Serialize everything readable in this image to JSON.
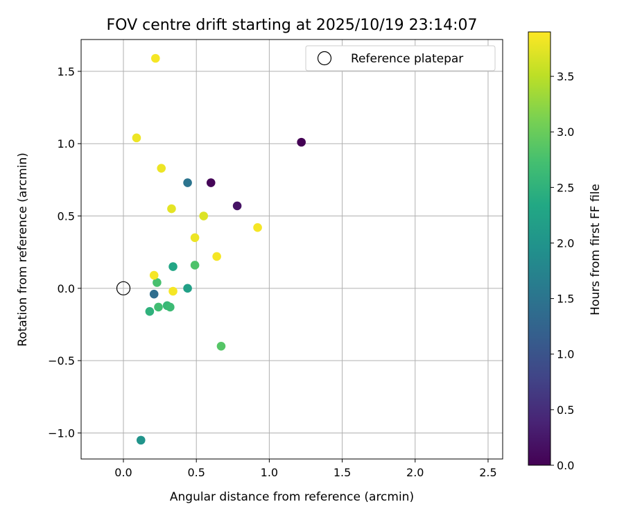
{
  "chart_data": {
    "type": "scatter",
    "title": "FOV centre drift starting at 2025/10/19 23:14:07",
    "xlabel": "Angular distance from reference (arcmin)",
    "ylabel": "Rotation from reference (arcmin)",
    "xlim": [
      -0.29,
      2.6
    ],
    "ylim": [
      -1.18,
      1.72
    ],
    "xticks": [
      0.0,
      0.5,
      1.0,
      1.5,
      2.0,
      2.5
    ],
    "xtick_labels": [
      "0.0",
      "0.5",
      "1.0",
      "1.5",
      "2.0",
      "2.5"
    ],
    "yticks": [
      -1.0,
      -0.5,
      0.0,
      0.5,
      1.0,
      1.5
    ],
    "ytick_labels": [
      "−1.0",
      "−0.5",
      "0.0",
      "0.5",
      "1.0",
      "1.5"
    ],
    "grid": true,
    "legend": {
      "position": "top-right",
      "label": "Reference platepar"
    },
    "reference": {
      "x": 0.0,
      "y": 0.0
    },
    "colorbar": {
      "label": "Hours from first FF file",
      "colormap": "viridis",
      "range": [
        0.0,
        3.9
      ],
      "ticks": [
        0.0,
        0.5,
        1.0,
        1.5,
        2.0,
        2.5,
        3.0,
        3.5
      ],
      "tick_labels": [
        "0.0",
        "0.5",
        "1.0",
        "1.5",
        "2.0",
        "2.5",
        "3.0",
        "3.5"
      ]
    },
    "points": [
      {
        "x": 1.22,
        "y": 1.01,
        "hours": 0.0
      },
      {
        "x": 0.6,
        "y": 0.73,
        "hours": 0.05
      },
      {
        "x": 0.78,
        "y": 0.57,
        "hours": 0.2
      },
      {
        "x": 0.44,
        "y": 0.73,
        "hours": 1.5
      },
      {
        "x": 0.21,
        "y": -0.04,
        "hours": 1.4
      },
      {
        "x": 0.12,
        "y": -1.05,
        "hours": 2.0
      },
      {
        "x": 0.44,
        "y": 0.0,
        "hours": 2.2
      },
      {
        "x": 0.34,
        "y": 0.15,
        "hours": 2.3
      },
      {
        "x": 0.18,
        "y": -0.16,
        "hours": 2.5
      },
      {
        "x": 0.3,
        "y": -0.12,
        "hours": 2.6
      },
      {
        "x": 0.32,
        "y": -0.13,
        "hours": 2.65
      },
      {
        "x": 0.24,
        "y": -0.13,
        "hours": 2.7
      },
      {
        "x": 0.23,
        "y": 0.04,
        "hours": 2.75
      },
      {
        "x": 0.49,
        "y": 0.16,
        "hours": 2.8
      },
      {
        "x": 0.67,
        "y": -0.4,
        "hours": 2.85
      },
      {
        "x": 0.21,
        "y": 0.09,
        "hours": 3.85
      },
      {
        "x": 0.34,
        "y": -0.02,
        "hours": 3.85
      },
      {
        "x": 0.49,
        "y": 0.35,
        "hours": 3.8
      },
      {
        "x": 0.64,
        "y": 0.22,
        "hours": 3.85
      },
      {
        "x": 0.55,
        "y": 0.5,
        "hours": 3.7
      },
      {
        "x": 0.33,
        "y": 0.55,
        "hours": 3.75
      },
      {
        "x": 0.26,
        "y": 0.83,
        "hours": 3.8
      },
      {
        "x": 0.09,
        "y": 1.04,
        "hours": 3.8
      },
      {
        "x": 0.22,
        "y": 1.59,
        "hours": 3.85
      },
      {
        "x": 0.92,
        "y": 0.42,
        "hours": 3.85
      }
    ]
  }
}
